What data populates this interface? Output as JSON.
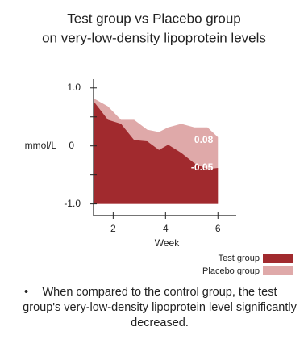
{
  "chart_data": {
    "type": "area",
    "title": [
      "Test group vs Placebo group",
      "on very-low-density lipoprotein levels"
    ],
    "x_label": "Week",
    "y_label": "mmol/L",
    "x": [
      1.25,
      1.8,
      2.3,
      2.8,
      3.3,
      3.75,
      4.1,
      4.6,
      5.1,
      5.6,
      6
    ],
    "series": [
      {
        "name": "Test group",
        "color": "#a12a2e",
        "values": [
          0.77,
          0.45,
          0.38,
          0.1,
          0.08,
          -0.07,
          0.02,
          -0.12,
          -0.3,
          -0.4,
          -0.38
        ]
      },
      {
        "name": "Placebo group",
        "color": "#dfa9a9",
        "values": [
          0.82,
          0.68,
          0.45,
          0.45,
          0.28,
          0.24,
          0.32,
          0.38,
          0.32,
          0.32,
          0.15
        ]
      }
    ],
    "annotations": [
      "-0.05",
      "0.08"
    ],
    "xlim": [
      1.25,
      6.7
    ],
    "xticks": [
      2,
      4,
      6
    ],
    "ylim": [
      -1.2,
      1.15
    ],
    "yticks": [
      {
        "value": 1,
        "label": "1.0"
      },
      0,
      {
        "value": -1,
        "label": "-1.0"
      }
    ],
    "yminor": [
      0.5,
      -0.5
    ],
    "legend": "bottom-right",
    "note": "When compared to the control group, the test group's very-low-density lipoprotein level significantly decreased."
  }
}
